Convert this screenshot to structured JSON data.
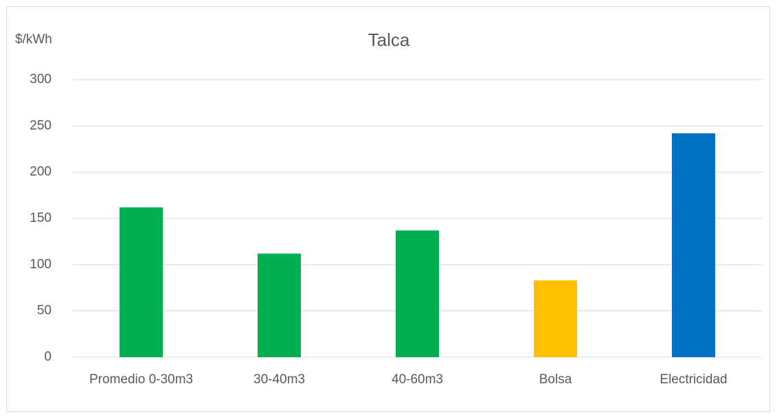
{
  "chart_data": {
    "type": "bar",
    "title": "Talca",
    "y_label": "$/kWh",
    "categories": [
      "Promedio 0-30m3",
      "30-40m3",
      "40-60m3",
      "Bolsa",
      "Electricidad"
    ],
    "values": [
      162,
      112,
      137,
      83,
      242
    ],
    "colors": [
      "#00b050",
      "#00b050",
      "#00b050",
      "#ffc000",
      "#0070c0"
    ],
    "ylim": [
      0,
      300
    ],
    "yticks": [
      0,
      50,
      100,
      150,
      200,
      250,
      300
    ],
    "grid": true
  }
}
